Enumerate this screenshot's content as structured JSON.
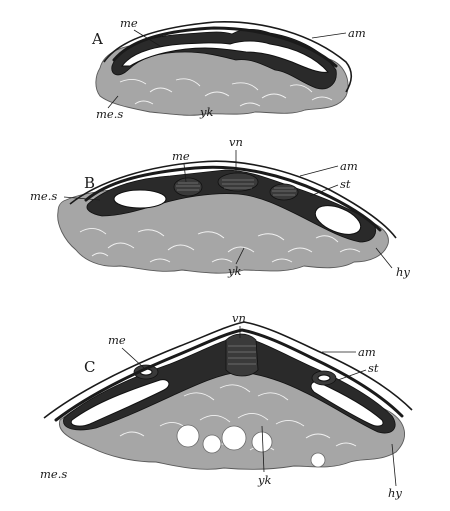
{
  "panels": [
    {
      "letter": "A",
      "labels": {
        "me": "me",
        "am": "am",
        "mes": "me.s",
        "yk": "yk"
      }
    },
    {
      "letter": "B",
      "labels": {
        "vn": "vn",
        "me": "me",
        "am": "am",
        "st": "st",
        "mes": "me.s",
        "yk": "yk",
        "hy": "hy"
      }
    },
    {
      "letter": "C",
      "labels": {
        "vn": "vn",
        "me": "me",
        "am": "am",
        "st": "st",
        "mes": "me.s",
        "yk": "yk",
        "hy": "hy"
      }
    }
  ]
}
